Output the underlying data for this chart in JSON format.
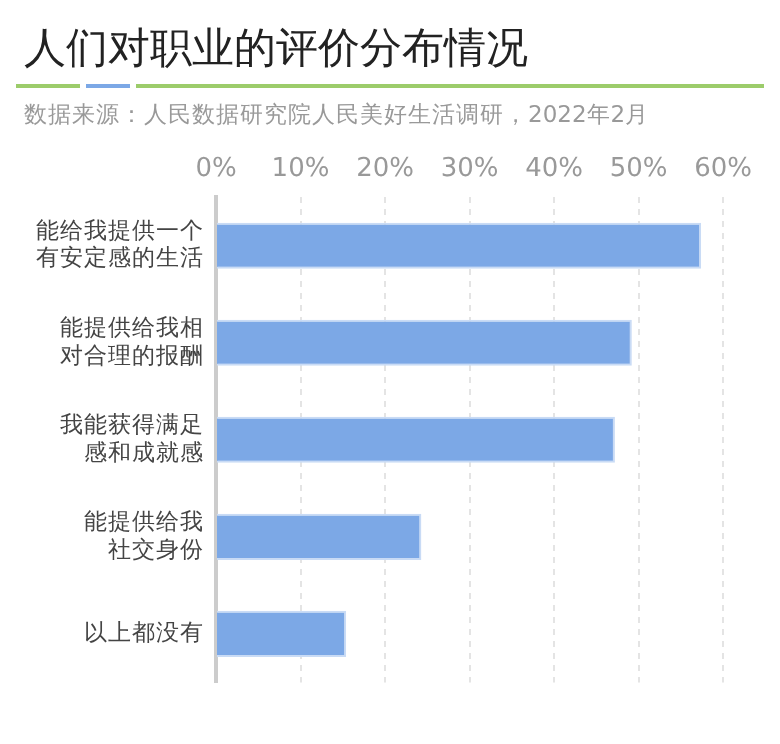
{
  "chart_data": {
    "type": "bar",
    "orientation": "horizontal",
    "title": "人们对职业的评价分布情况",
    "subtitle": "数据来源：人民数据研究院人民美好生活调研，2022年2月",
    "categories": [
      "能给我提供一个有安定感的生活",
      "能提供给我相对合理的报酬",
      "我能获得满足感和成就感",
      "能提供给我社交身份",
      "以上都没有"
    ],
    "values": [
      57.4,
      49.2,
      47.2,
      24.3,
      15.4
    ],
    "color": "#7ca8e6",
    "xlim": [
      0,
      60
    ],
    "xticks": [
      {
        "value": 0,
        "label": "0%"
      },
      {
        "value": 10,
        "label": "10%"
      },
      {
        "value": 20,
        "label": "20%"
      },
      {
        "value": 30,
        "label": "30%"
      },
      {
        "value": 40,
        "label": "40%"
      },
      {
        "value": 50,
        "label": "50%"
      },
      {
        "value": 60,
        "label": "60%"
      }
    ],
    "grid": "x",
    "legend": false
  }
}
